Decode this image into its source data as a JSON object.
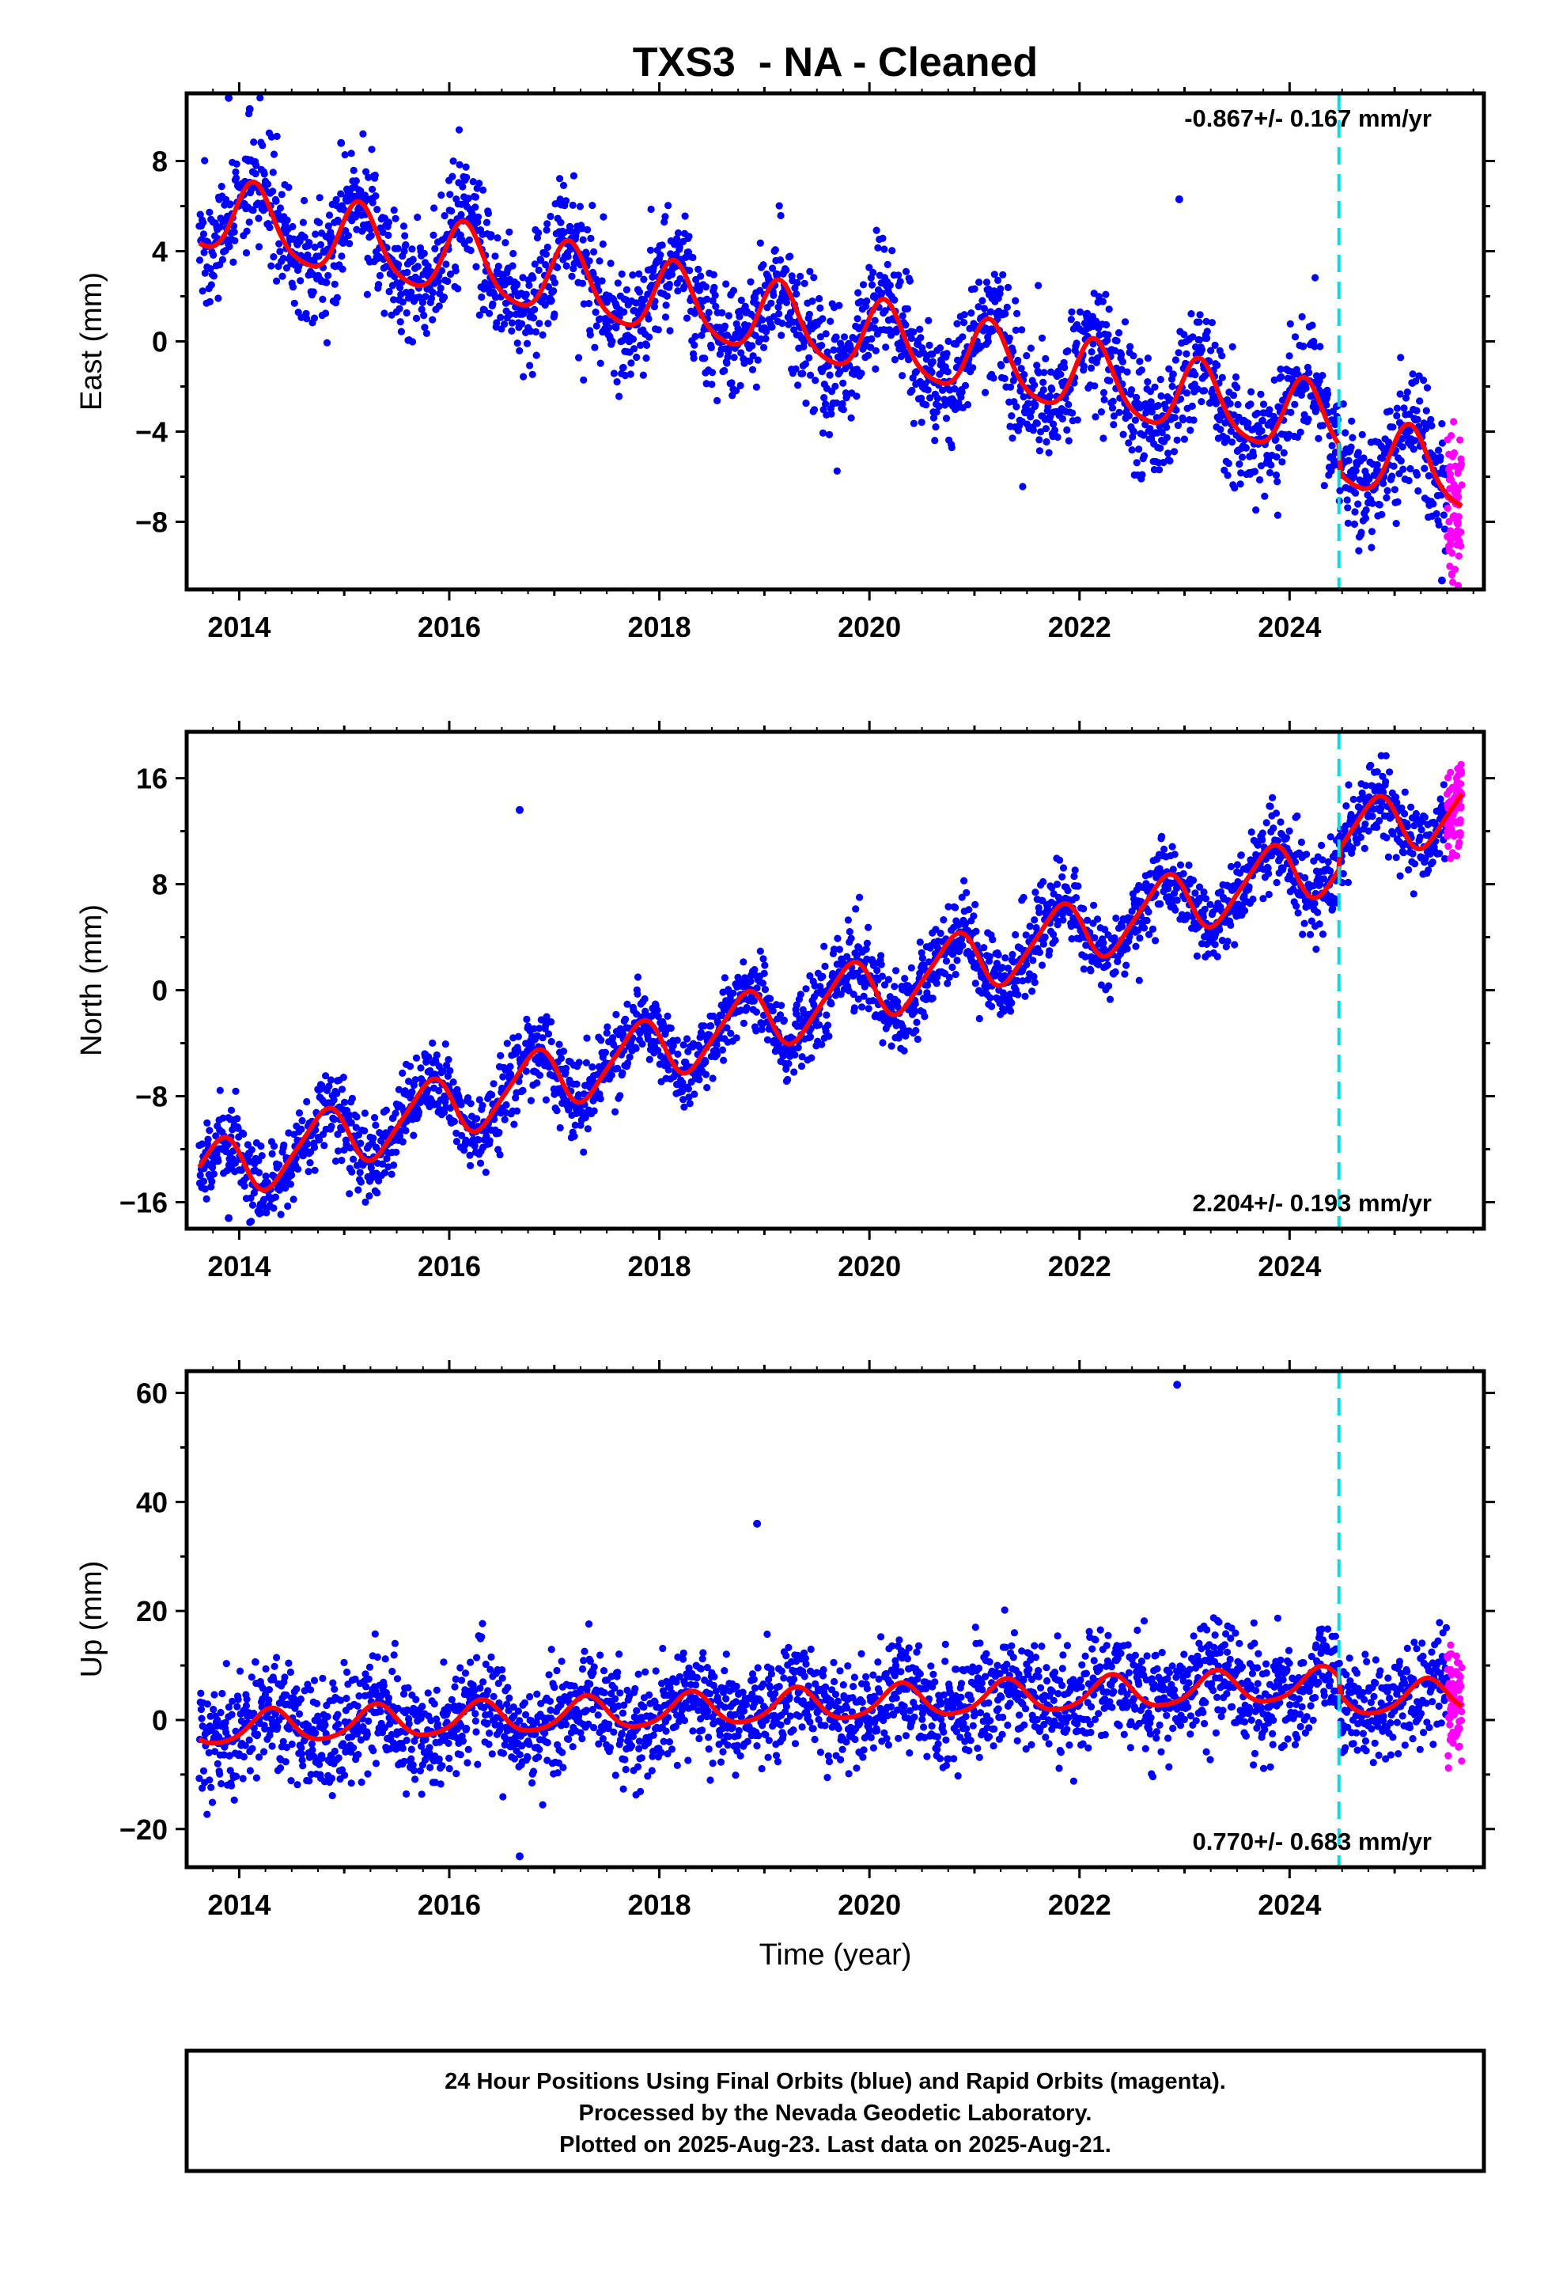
{
  "chart_data": {
    "title": "TXS3  - NA - Cleaned",
    "xlabel": "Time (year)",
    "x_ticks": [
      "2014",
      "2016",
      "2018",
      "2020",
      "2022",
      "2024"
    ],
    "xlim": [
      2013.5,
      2025.85
    ],
    "equipment_change_epoch": 2024.47,
    "data_span": [
      2013.62,
      2025.64
    ],
    "rapid_orbits_start": 2025.5,
    "colors": {
      "final_orbits": "#0000ff",
      "rapid_orbits": "#ff00ff",
      "model_fit": "#ff0000",
      "equipment_change": "#00dddd"
    },
    "panels": [
      {
        "type": "scatter",
        "name": "east",
        "ylabel": "East (mm)",
        "ylim": [
          -11,
          11
        ],
        "y_ticks": [
          "8",
          "4",
          "0",
          "−4",
          "−8"
        ],
        "y_tick_values": [
          8,
          4,
          0,
          -4,
          -8
        ],
        "rate_label": "-0.867+/- 0.167 mm/yr",
        "rate_position": "top-right",
        "model": {
          "rate": -0.867,
          "intercept_at_2014": 5.3,
          "annual_amplitude": 1.6,
          "annual_phase": 0.9,
          "semiannual_amplitude": 0.3,
          "semiannual_phase": 0.5,
          "offset_2024_47": -1.2
        },
        "scatter_std": 1.35,
        "outliers": [
          {
            "x": 2013.9,
            "y": 10.8
          },
          {
            "x": 2014.1,
            "y": 10.3
          },
          {
            "x": 2014.97,
            "y": 8.8
          },
          {
            "x": 2022.95,
            "y": 6.3
          },
          {
            "x": 2025.45,
            "y": -10.6
          }
        ]
      },
      {
        "type": "scatter",
        "name": "north",
        "ylabel": "North (mm)",
        "ylim": [
          -18,
          19.5
        ],
        "y_ticks": [
          "16",
          "8",
          "0",
          "−8",
          "−16"
        ],
        "y_tick_values": [
          16,
          8,
          0,
          -8,
          -16
        ],
        "rate_label": "2.204+/- 0.193 mm/yr",
        "rate_position": "bottom-right",
        "model": {
          "rate": 2.204,
          "intercept_at_2014": -13.2,
          "annual_amplitude": 2.3,
          "annual_phase": 0.55,
          "semiannual_amplitude": 0.4,
          "semiannual_phase": 0.3,
          "offset_2024_47": 1.5
        },
        "scatter_std": 1.5,
        "outliers": [
          {
            "x": 2016.67,
            "y": 13.6
          },
          {
            "x": 2013.9,
            "y": -17.2
          }
        ]
      },
      {
        "type": "scatter",
        "name": "up",
        "ylabel": "Up (mm)",
        "ylim": [
          -27,
          64
        ],
        "y_ticks": [
          "60",
          "40",
          "20",
          "0",
          "−20"
        ],
        "y_tick_values": [
          60,
          40,
          20,
          0,
          -20
        ],
        "rate_label": "0.770+/- 0.683 mm/yr",
        "rate_position": "bottom-right",
        "model": {
          "rate": 0.77,
          "intercept_at_2014": -1.5,
          "annual_amplitude": 3.0,
          "annual_phase": 0.05,
          "semiannual_amplitude": 0.5,
          "semiannual_phase": 0.2,
          "offset_2024_47": -3.0
        },
        "scatter_std": 5.0,
        "outliers": [
          {
            "x": 2018.93,
            "y": 36
          },
          {
            "x": 2022.93,
            "y": 61.5
          },
          {
            "x": 2016.67,
            "y": -25
          }
        ]
      }
    ],
    "footer": [
      "24 Hour Positions Using Final Orbits (blue) and Rapid Orbits (magenta).",
      "Processed by the Nevada Geodetic Laboratory.",
      "Plotted on 2025-Aug-23. Last data on 2025-Aug-21."
    ]
  }
}
